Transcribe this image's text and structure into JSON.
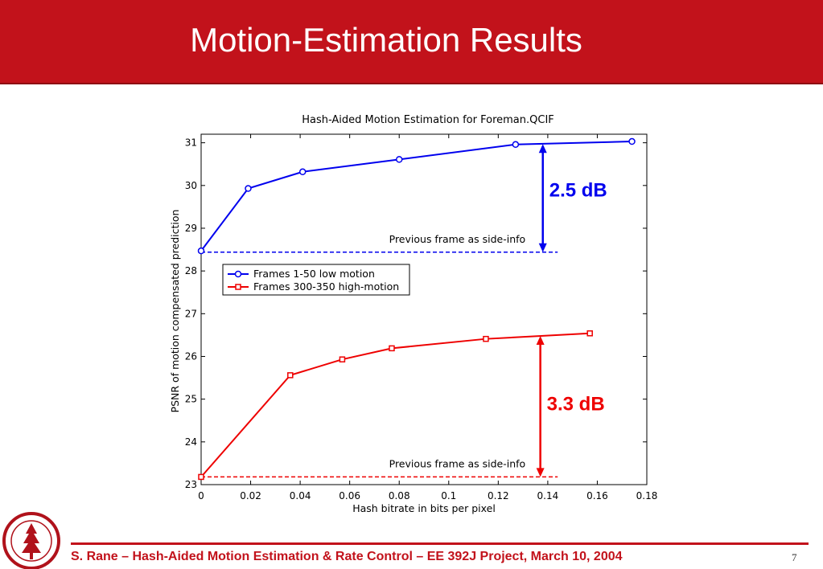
{
  "slide": {
    "title": "Motion-Estimation Results",
    "footer": "S. Rane – Hash-Aided Motion Estimation & Rate Control – EE 392J Project, March 10, 2004",
    "page_number": "7",
    "logo_icon": "stanford-seal-icon",
    "colors": {
      "title_bar": "#c2121b",
      "footer_text": "#c2121b"
    }
  },
  "chart_data": {
    "type": "line",
    "title": "Hash-Aided Motion Estimation for Foreman.QCIF",
    "xlabel": "Hash bitrate in bits per pixel",
    "ylabel": "PSNR of motion compensated prediction",
    "xlim": [
      0,
      0.18
    ],
    "ylim": [
      23,
      31.2
    ],
    "xticks": [
      "0",
      "0.02",
      "0.04",
      "0.06",
      "0.08",
      "0.1",
      "0.12",
      "0.14",
      "0.16",
      "0.18"
    ],
    "yticks": [
      "23",
      "24",
      "25",
      "26",
      "27",
      "28",
      "29",
      "30",
      "31"
    ],
    "grid": false,
    "legend_position": "upper-left-center",
    "series": [
      {
        "name": "Frames 1-50 low motion",
        "color": "#0000ee",
        "marker": "circle",
        "x": [
          0,
          0.019,
          0.041,
          0.08,
          0.127,
          0.174
        ],
        "y": [
          28.47,
          29.93,
          30.32,
          30.61,
          30.96,
          31.03
        ]
      },
      {
        "name": "Frames 300-350 high-motion",
        "color": "#ee0000",
        "marker": "square",
        "x": [
          0,
          0.036,
          0.057,
          0.077,
          0.115,
          0.157
        ],
        "y": [
          23.18,
          25.56,
          25.93,
          26.19,
          26.41,
          26.54
        ]
      }
    ],
    "baselines": [
      {
        "label": "Previous frame as side-info",
        "y": 28.44,
        "x_end": 0.144,
        "color": "#0000ee"
      },
      {
        "label": "Previous frame as side-info",
        "y": 23.18,
        "x_end": 0.144,
        "color": "#ee0000"
      }
    ],
    "gain_annotations": [
      {
        "label": "2.5 dB",
        "x": 0.138,
        "y_from": 28.44,
        "y_to": 30.97,
        "color": "#0000ee"
      },
      {
        "label": "3.3 dB",
        "x": 0.137,
        "y_from": 23.18,
        "y_to": 26.48,
        "color": "#ee0000"
      }
    ]
  }
}
